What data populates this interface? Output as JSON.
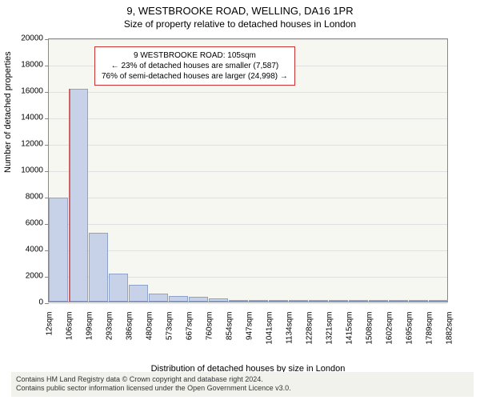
{
  "title": "9, WESTBROOKE ROAD, WELLING, DA16 1PR",
  "subtitle": "Size of property relative to detached houses in London",
  "ylabel": "Number of detached properties",
  "xlabel": "Distribution of detached houses by size in London",
  "callout": {
    "line1": "9 WESTBROOKE ROAD: 105sqm",
    "line2": "← 23% of detached houses are smaller (7,587)",
    "line3": "76% of semi-detached houses are larger (24,998) →"
  },
  "chart": {
    "type": "histogram",
    "background_color": "#f7f7f2",
    "grid_color": "#e0e0e0",
    "bar_fill": "#c7d2e8",
    "bar_border": "#8fa3c9",
    "highlight_fill": "#e89999",
    "highlight_border": "#cc6666",
    "ylim": [
      0,
      20000
    ],
    "ytick_step": 2000,
    "yticks": [
      0,
      2000,
      4000,
      6000,
      8000,
      10000,
      12000,
      14000,
      16000,
      18000,
      20000
    ],
    "xticks": [
      "12sqm",
      "106sqm",
      "199sqm",
      "293sqm",
      "386sqm",
      "480sqm",
      "573sqm",
      "667sqm",
      "760sqm",
      "854sqm",
      "947sqm",
      "1041sqm",
      "1134sqm",
      "1228sqm",
      "1321sqm",
      "1415sqm",
      "1508sqm",
      "1602sqm",
      "1695sqm",
      "1789sqm",
      "1882sqm"
    ],
    "bars": [
      {
        "value": 7900
      },
      {
        "value": 16100,
        "highlight_fraction": 0.03
      },
      {
        "value": 5200
      },
      {
        "value": 2100
      },
      {
        "value": 1300
      },
      {
        "value": 600
      },
      {
        "value": 450
      },
      {
        "value": 350
      },
      {
        "value": 250
      },
      {
        "value": 150
      },
      {
        "value": 100
      },
      {
        "value": 80
      },
      {
        "value": 60
      },
      {
        "value": 50
      },
      {
        "value": 40
      },
      {
        "value": 30
      },
      {
        "value": 20
      },
      {
        "value": 20
      },
      {
        "value": 20
      },
      {
        "value": 20
      }
    ]
  },
  "footer": {
    "line1": "Contains HM Land Registry data © Crown copyright and database right 2024.",
    "line2": "Contains public sector information licensed under the Open Government Licence v3.0."
  }
}
